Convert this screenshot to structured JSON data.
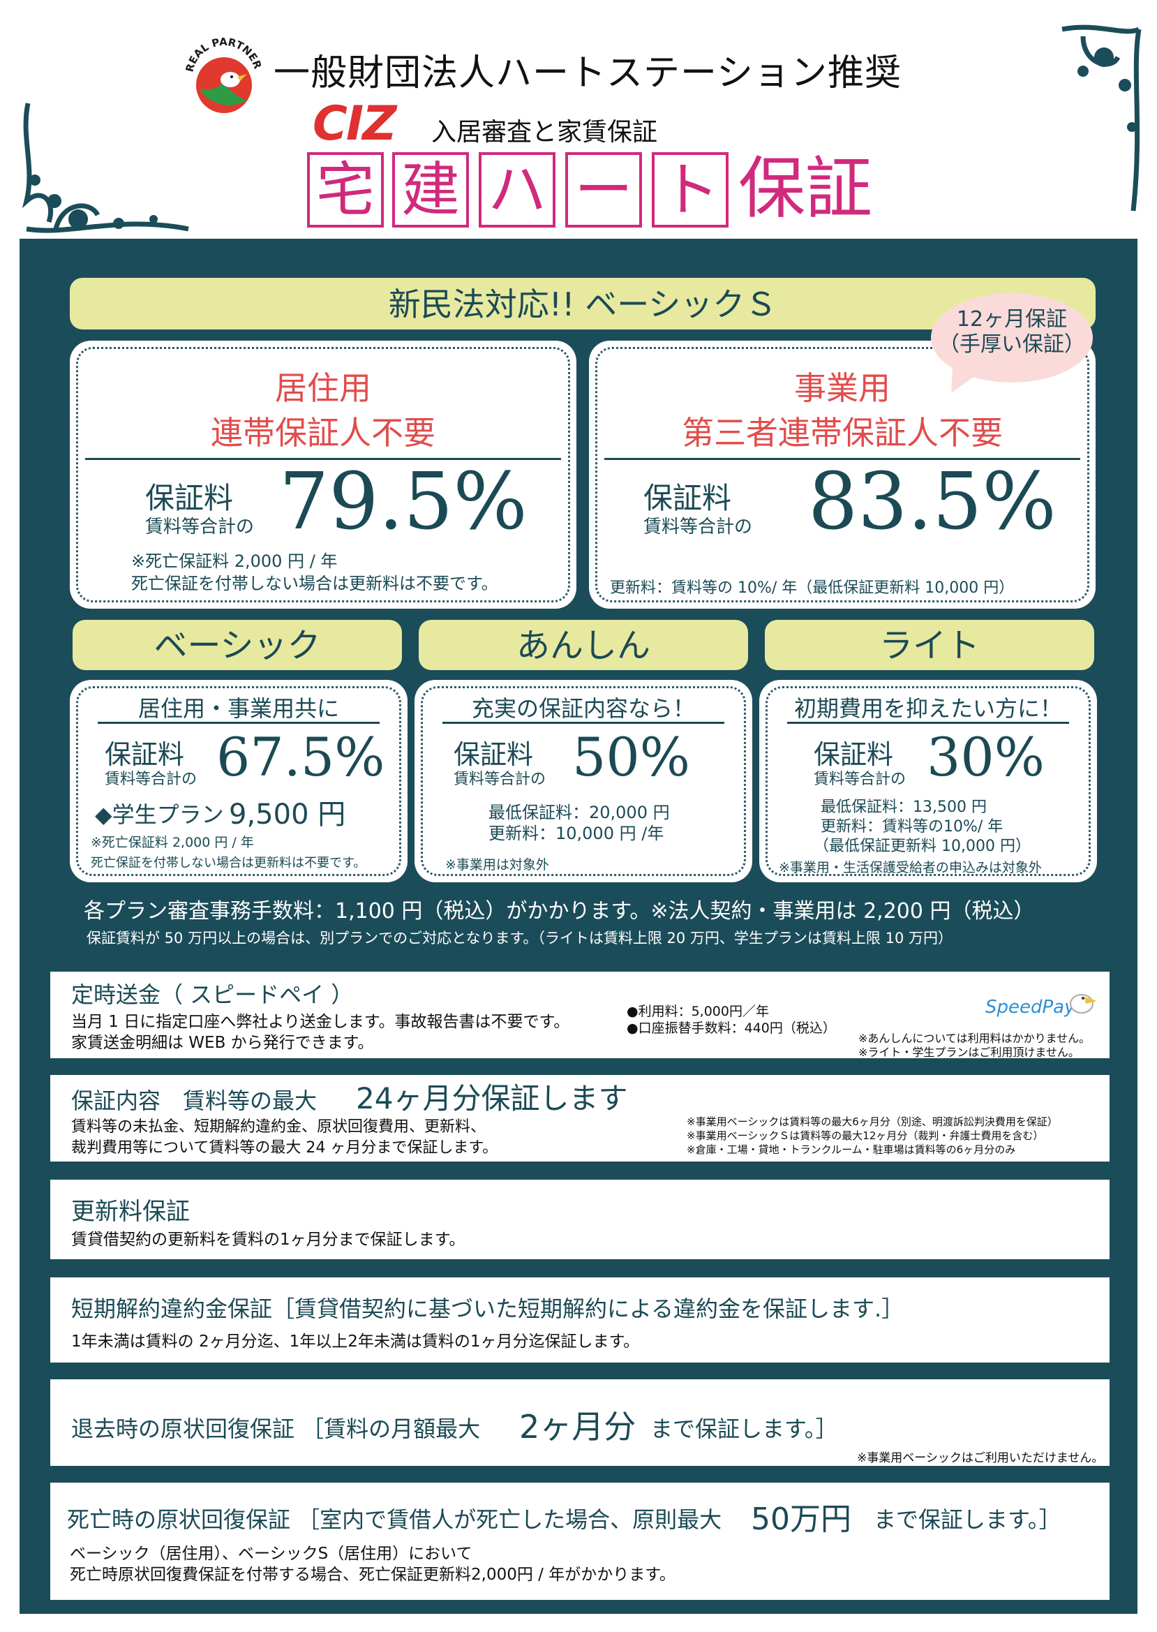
{
  "header": {
    "logo_text": "REAL PARTNER",
    "org_title": "一般財団法人ハートステーション推奨",
    "ciz": "CIZ",
    "ciz_sub": "入居審査と家賃保証",
    "brand_boxed": [
      "宅",
      "建",
      "ハ",
      "ー",
      "ト"
    ],
    "brand_tail": "保証"
  },
  "banner": "新民法対応!! ベーシックＳ",
  "bubble": "12ヶ月保証\n（手厚い保証）",
  "residential": {
    "line1": "居住用",
    "line2": "連帯保証人不要",
    "fee_label": "保証料",
    "fee_sub": "賃料等合計の",
    "pct": "79.5%",
    "note1": "※死亡保証料 2,000 円 / 年",
    "note2": "死亡保証を付帯しない場合は更新料は不要です。"
  },
  "business": {
    "line1": "事業用",
    "line2": "第三者連帯保証人不要",
    "fee_label": "保証料",
    "fee_sub": "賃料等合計の",
    "pct": "83.5%",
    "note": "更新料：賃料等の 10%/ 年（最低保証更新料 10,000 円）"
  },
  "plans": {
    "basic": {
      "name": "ベーシック",
      "tagline": "居住用・事業用共に",
      "fee_label": "保証料",
      "fee_sub": "賃料等合計の",
      "pct": "67.5%",
      "student_label": "◆学生プラン",
      "student_price": "9,500 円",
      "note1": "※死亡保証料 2,000 円 / 年",
      "note2": "死亡保証を付帯しない場合は更新料は不要です。"
    },
    "anshin": {
      "name": "あんしん",
      "tagline": "充実の保証内容なら！",
      "fee_label": "保証料",
      "fee_sub": "賃料等合計の",
      "pct": "50%",
      "detail1": "最低保証料：20,000 円",
      "detail2": "更新料：10,000 円 /年",
      "note": "※事業用は対象外"
    },
    "light": {
      "name": "ライト",
      "tagline": "初期費用を抑えたい方に！",
      "fee_label": "保証料",
      "fee_sub": "賃料等合計の",
      "pct": "30%",
      "detail1": "最低保証料：13,500 円",
      "detail2": "更新料：賃料等の10%/ 年",
      "detail3": "（最低保証更新料 10,000 円）",
      "note": "※事業用・生活保護受給者の申込みは対象外"
    }
  },
  "fees_line1": "各プラン審査事務手数料：1,100 円（税込）がかかります。※法人契約・事業用は 2,200 円（税込）",
  "fees_line2": "保証賃料が 50 万円以上の場合は、別プランでのご対応となります。（ライトは賃料上限 20 万円、学生プランは賃料上限 10 万円）",
  "sections": {
    "speedpay": {
      "title": "定時送金（ スピードペイ ）",
      "text1": "当月 1 日に指定口座へ弊社より送金します。事故報告書は不要です。",
      "text2": "家賃送金明細は WEB から発行できます。",
      "fee1": "●利用料：5,000円／年",
      "fee2": "●口座振替手数料：440円（税込）",
      "logo": "SpeedPay",
      "note1": "※あんしんについては利用料はかかりません。",
      "note2": "※ライト・学生プランはご利用頂けません。"
    },
    "coverage": {
      "title_a": "保証内容　賃料等の最大",
      "title_b": "24ヶ月分保証します",
      "text1": "賃料等の未払金、短期解約違約金、原状回復費用、更新料、",
      "text2": "裁判費用等について賃料等の最大 24 ヶ月分まで保証します。",
      "note1": "※事業用ベーシックは賃料等の最大6ヶ月分（別途、明渡訴訟判決費用を保証）",
      "note2": "※事業用ベーシックＳは賃料等の最大12ヶ月分（裁判・弁護士費用を含む）",
      "note3": "※倉庫・工場・貸地・トランクルーム・駐車場は賃料等の6ヶ月分のみ"
    },
    "renewal": {
      "title": "更新料保証",
      "text": "賃貸借契約の更新料を賃料の1ヶ月分まで保証します。"
    },
    "early": {
      "title": "短期解約違約金保証［賃貸借契約に基づいた短期解約による違約金を保証します.］",
      "text": "1年未満は賃料の 2ヶ月分迄、1年以上2年未満は賃料の1ヶ月分迄保証します。"
    },
    "moveout": {
      "title_a": "退去時の原状回復保証 ［賃料の月額最大",
      "title_b": "2ヶ月分",
      "title_c": "まで保証します。］",
      "note": "※事業用ベーシックはご利用いただけません。"
    },
    "death": {
      "title_a": "死亡時の原状回復保証 ［室内で賃借人が死亡した場合、原則最大",
      "title_b": "50万円",
      "title_c": "まで保証します。］",
      "text1": "ベーシック（居住用）、ベーシックS（居住用）において",
      "text2": "死亡時原状回復費保証を付帯する場合、死亡保証更新料2,000円 / 年がかかります。"
    }
  }
}
